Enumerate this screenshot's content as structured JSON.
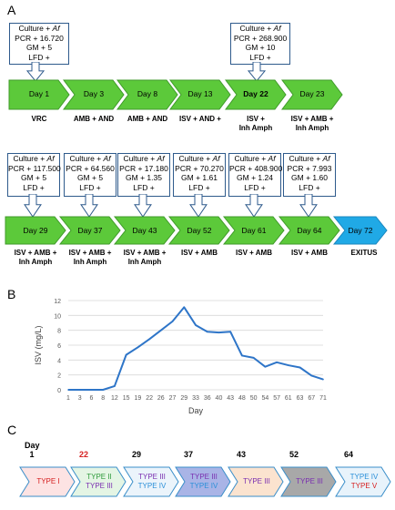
{
  "panels": {
    "a": "A",
    "b": "B",
    "c": "C"
  },
  "row1": {
    "callouts": [
      {
        "l1": "Culture + ",
        "l1i": "Af",
        "l2": "PCR + 16.720",
        "l3": "GM + 5",
        "l4": "LFD +"
      },
      {
        "l1": "Culture + ",
        "l1i": "Af",
        "l2": "PCR + 268.900",
        "l3": "GM + 10",
        "l4": "LFD +"
      }
    ],
    "days": [
      "Day 1",
      "Day 3",
      "Day 8",
      "Day 13",
      "Day 22",
      "Day 23"
    ],
    "treatments": [
      "VRC",
      "AMB + AND",
      "AMB + AND",
      "ISV + AND +",
      "ISV +\nInh Amph",
      "ISV + AMB +\nInh Amph"
    ]
  },
  "row2": {
    "callouts": [
      {
        "l1": "Culture + ",
        "l1i": "Af",
        "l2": "PCR + 117.500",
        "l3": "GM + 5",
        "l4": "LFD +"
      },
      {
        "l1": "Culture + ",
        "l1i": "Af",
        "l2": "PCR + 64.560",
        "l3": "GM + 5",
        "l4": "LFD +"
      },
      {
        "l1": "Culture + ",
        "l1i": "Af",
        "l2": "PCR + 17.180",
        "l3": "GM + 1.35",
        "l4": "LFD +"
      },
      {
        "l1": "Culture + ",
        "l1i": "Af",
        "l2": "PCR + 70.270",
        "l3": "GM + 1.61",
        "l4": "LFD +"
      },
      {
        "l1": "Culture + ",
        "l1i": "Af",
        "l2": "PCR + 408.900",
        "l3": "GM + 1.24",
        "l4": "LFD +"
      },
      {
        "l1": "Culture + ",
        "l1i": "Af",
        "l2": "PCR + 7.993",
        "l3": "GM + 1.60",
        "l4": "LFD +"
      }
    ],
    "days": [
      "Day 29",
      "Day 37",
      "Day 43",
      "Day 52",
      "Day 61",
      "Day 64",
      "Day 72"
    ],
    "treatments": [
      "ISV + AMB +\nInh Amph",
      "ISV + AMB +\nInh Amph",
      "ISV + AMB +\nInh Amph",
      "ISV + AMB",
      "ISV + AMB",
      "ISV + AMB",
      "EXITUS"
    ]
  },
  "chart_data": {
    "type": "line",
    "xlabel": "Day",
    "ylabel": "ISV (mg/L)",
    "ylim": [
      0,
      12
    ],
    "yticks": [
      0,
      2,
      4,
      6,
      8,
      10,
      12
    ],
    "categories": [
      "1",
      "3",
      "6",
      "8",
      "12",
      "15",
      "19",
      "22",
      "26",
      "27",
      "29",
      "33",
      "36",
      "40",
      "43",
      "48",
      "50",
      "54",
      "57",
      "61",
      "63",
      "67",
      "71"
    ],
    "values": [
      0,
      0,
      0,
      0,
      0.5,
      4.7,
      5.7,
      6.8,
      8.0,
      9.2,
      11.1,
      8.7,
      7.8,
      7.7,
      7.8,
      4.6,
      4.3,
      3.1,
      3.7,
      3.3,
      3.0,
      1.9,
      1.4
    ],
    "color": "#2e75c8",
    "grid": true
  },
  "panel_c": {
    "day_label": "Day",
    "days": [
      {
        "label": "1",
        "color": "#000000"
      },
      {
        "label": "22",
        "color": "#d62020"
      },
      {
        "label": "29",
        "color": "#000000"
      },
      {
        "label": "37",
        "color": "#000000"
      },
      {
        "label": "43",
        "color": "#000000"
      },
      {
        "label": "52",
        "color": "#000000"
      },
      {
        "label": "64",
        "color": "#000000"
      }
    ],
    "chevrons": [
      {
        "fill": "#fde3e3",
        "types": [
          {
            "t": "TYPE I",
            "c": "#d62020"
          }
        ]
      },
      {
        "fill": "#e4f5e4",
        "types": [
          {
            "t": "TYPE II",
            "c": "#2e9a3a"
          },
          {
            "t": "TYPE III",
            "c": "#7a2fb0"
          }
        ]
      },
      {
        "fill": "#ebf4fb",
        "types": [
          {
            "t": "TYPE III",
            "c": "#7a2fb0"
          },
          {
            "t": "TYPE IV",
            "c": "#2a8fd8"
          }
        ]
      },
      {
        "fill": "#a9b4e6",
        "types": [
          {
            "t": "TYPE III",
            "c": "#7a2fb0"
          },
          {
            "t": "TYPE IV",
            "c": "#2a8fd8"
          }
        ]
      },
      {
        "fill": "#fbe3cf",
        "types": [
          {
            "t": "TYPE III",
            "c": "#7a2fb0"
          }
        ]
      },
      {
        "fill": "#a8a8a8",
        "types": [
          {
            "t": "TYPE III",
            "c": "#7a2fb0"
          }
        ]
      },
      {
        "fill": "#e8f3fb",
        "types": [
          {
            "t": "TYPE IV",
            "c": "#2a8fd8"
          },
          {
            "t": "TYPE V",
            "c": "#d62020"
          }
        ]
      }
    ]
  }
}
